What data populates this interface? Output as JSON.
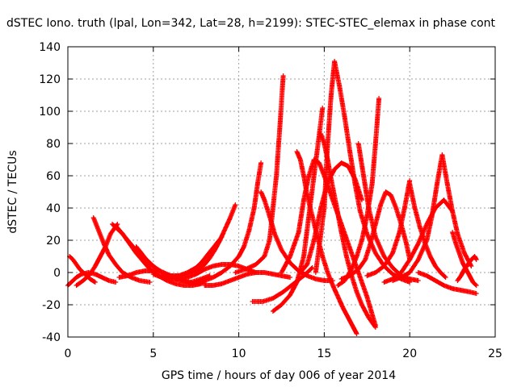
{
  "chart_data": {
    "type": "scatter",
    "title": "dSTEC Iono. truth (lpal, Lon=342, Lat=28, h=2199): STEC-STEC_elemax in phase cont",
    "xlabel": "GPS time / hours of day 006 of year 2014",
    "ylabel": "dSTEC  / TECUs",
    "xlim": [
      0,
      25
    ],
    "ylim": [
      -40,
      140
    ],
    "xticks": [
      0,
      5,
      10,
      15,
      20,
      25
    ],
    "yticks": [
      -40,
      -20,
      0,
      20,
      40,
      60,
      80,
      100,
      120,
      140
    ],
    "grid": true,
    "marker": "+",
    "color": "#ff0000",
    "series": [
      {
        "x": [
          0.0,
          0.2,
          0.5,
          0.8,
          1.2,
          1.6,
          2.0,
          2.4,
          2.8
        ],
        "y": [
          -8,
          -6,
          -3,
          -1,
          0,
          -1,
          -3,
          -5,
          -6
        ]
      },
      {
        "x": [
          0.1,
          0.3,
          0.5,
          0.7,
          1.0,
          1.3,
          1.6
        ],
        "y": [
          10,
          8,
          5,
          2,
          -1,
          -4,
          -6
        ]
      },
      {
        "x": [
          0.5,
          0.9,
          1.3,
          1.6,
          1.9,
          2.2,
          2.5,
          2.9
        ],
        "y": [
          -8,
          -5,
          -1,
          4,
          10,
          16,
          24,
          30
        ]
      },
      {
        "x": [
          1.5,
          1.8,
          2.1,
          2.4,
          2.8,
          3.2,
          3.7,
          4.2,
          4.8
        ],
        "y": [
          34,
          26,
          18,
          11,
          5,
          0,
          -3,
          -5,
          -6
        ]
      },
      {
        "x": [
          2.6,
          2.9,
          3.2,
          3.5,
          3.9,
          4.3,
          4.8,
          5.4,
          6.0
        ],
        "y": [
          30,
          27,
          24,
          20,
          15,
          10,
          5,
          1,
          -2
        ]
      },
      {
        "x": [
          2.8,
          3.2,
          3.6,
          4.0,
          4.4,
          4.8,
          5.3,
          5.8,
          6.3,
          6.8,
          7.3,
          7.8
        ],
        "y": [
          29,
          24,
          18,
          12,
          7,
          2,
          -2,
          -5,
          -7,
          -8,
          -8,
          -7
        ]
      },
      {
        "x": [
          3.0,
          3.5,
          4.0,
          4.5,
          5.0,
          5.5,
          6.0,
          6.5,
          7.0,
          7.5,
          8.0
        ],
        "y": [
          -3,
          -2,
          0,
          1,
          1,
          0,
          -2,
          -4,
          -6,
          -7,
          -6
        ]
      },
      {
        "x": [
          4.0,
          4.3,
          4.6,
          5.0,
          5.5,
          6.0,
          6.6,
          7.2,
          7.8,
          8.3
        ],
        "y": [
          16,
          12,
          8,
          4,
          0,
          -3,
          -5,
          -6,
          -4,
          -2
        ]
      },
      {
        "x": [
          5.0,
          5.5,
          6.0,
          6.5,
          7.0,
          7.5,
          8.0,
          8.5,
          9.0,
          9.5,
          10.0,
          10.5,
          11.0
        ],
        "y": [
          -1,
          -3,
          -4,
          -4,
          -3,
          -1,
          2,
          4,
          5,
          5,
          4,
          2,
          0
        ]
      },
      {
        "x": [
          6.0,
          6.5,
          7.0,
          7.5,
          8.0,
          8.3,
          8.6,
          8.9,
          9.2,
          9.5,
          9.8
        ],
        "y": [
          -2,
          -2,
          -1,
          1,
          5,
          9,
          14,
          20,
          27,
          34,
          42
        ]
      },
      {
        "x": [
          5.6,
          6.0,
          6.5,
          7.0,
          7.5,
          7.8,
          8.1,
          8.4,
          8.7,
          9.0
        ],
        "y": [
          -3,
          -3,
          -2,
          0,
          3,
          6,
          10,
          14,
          18,
          22
        ]
      },
      {
        "x": [
          7.5,
          8.0,
          8.5,
          9.0,
          9.5,
          10.0,
          10.3,
          10.6,
          10.9,
          11.1,
          11.3
        ],
        "y": [
          -6,
          -5,
          -3,
          0,
          4,
          10,
          16,
          26,
          40,
          55,
          68
        ]
      },
      {
        "x": [
          8.0,
          8.5,
          9.0,
          9.5,
          10.0,
          10.5,
          11.0,
          11.5,
          12.0,
          12.5,
          13.0
        ],
        "y": [
          -8,
          -8,
          -7,
          -5,
          -3,
          -1,
          0,
          0,
          -1,
          -2,
          -3
        ]
      },
      {
        "x": [
          9.8,
          10.4,
          11.0,
          11.5,
          11.8,
          12.0,
          12.2,
          12.4,
          12.6
        ],
        "y": [
          0,
          2,
          5,
          10,
          20,
          40,
          60,
          90,
          122
        ]
      },
      {
        "x": [
          11.3,
          11.5,
          11.8,
          12.1,
          12.5,
          13.0,
          13.5,
          14.0,
          14.5,
          15.0,
          15.5
        ],
        "y": [
          50,
          45,
          35,
          24,
          14,
          6,
          1,
          -2,
          -4,
          -5,
          -5
        ]
      },
      {
        "x": [
          10.8,
          11.4,
          12.0,
          12.6,
          13.2,
          13.8,
          14.3
        ],
        "y": [
          -18,
          -18,
          -16,
          -12,
          -7,
          -2,
          3
        ]
      },
      {
        "x": [
          12.5,
          13.0,
          13.5,
          13.8,
          14.1,
          14.4,
          14.7,
          15.0,
          15.5,
          16.0,
          16.5,
          17.0,
          17.5,
          18.0
        ],
        "y": [
          0,
          10,
          25,
          45,
          60,
          70,
          68,
          60,
          45,
          30,
          15,
          0,
          -15,
          -33
        ]
      },
      {
        "x": [
          12.0,
          12.5,
          13.0,
          13.4,
          13.8,
          14.1,
          14.4,
          14.7,
          14.9
        ],
        "y": [
          -24,
          -20,
          -14,
          -6,
          10,
          35,
          60,
          85,
          102
        ]
      },
      {
        "x": [
          13.6,
          14.0,
          14.4,
          14.8,
          15.2,
          15.6,
          16.0,
          16.4,
          16.8,
          17.2
        ],
        "y": [
          0,
          5,
          20,
          40,
          56,
          64,
          68,
          66,
          58,
          45
        ]
      },
      {
        "x": [
          14.8,
          15.0,
          15.2,
          15.4,
          15.7,
          16.0,
          16.3,
          16.6,
          16.9,
          17.2,
          17.6,
          18.0
        ],
        "y": [
          86,
          80,
          70,
          58,
          42,
          25,
          10,
          -2,
          -12,
          -20,
          -28,
          -34
        ]
      },
      {
        "x": [
          13.4,
          13.6,
          13.8,
          14.0,
          14.3,
          14.6,
          14.9,
          15.2,
          15.5,
          15.8,
          16.1,
          16.4,
          16.7,
          16.9
        ],
        "y": [
          75,
          70,
          60,
          48,
          35,
          22,
          10,
          0,
          -8,
          -15,
          -22,
          -28,
          -34,
          -38
        ]
      },
      {
        "x": [
          14.5,
          15.0,
          15.2,
          15.4,
          15.6,
          15.9,
          16.2,
          16.5,
          16.8,
          17.1,
          17.5,
          18.0,
          18.5,
          19.0,
          19.5,
          20.0
        ],
        "y": [
          0,
          40,
          80,
          110,
          131,
          115,
          96,
          75,
          55,
          38,
          24,
          12,
          4,
          -1,
          -4,
          -6
        ]
      },
      {
        "x": [
          15.8,
          16.2,
          16.6,
          16.9,
          17.2,
          17.5,
          17.8,
          18.0,
          18.2
        ],
        "y": [
          -8,
          -5,
          2,
          10,
          20,
          35,
          55,
          80,
          108
        ]
      },
      {
        "x": [
          17.0,
          17.3,
          17.6,
          18.0,
          18.5,
          19.0,
          19.5,
          20.0,
          20.5
        ],
        "y": [
          80,
          60,
          40,
          22,
          10,
          3,
          -2,
          -4,
          -5
        ]
      },
      {
        "x": [
          16.0,
          16.5,
          17.0,
          17.4,
          17.7,
          18.0,
          18.3,
          18.6,
          18.9,
          19.2,
          19.5,
          19.8,
          20.0
        ],
        "y": [
          -4,
          -2,
          2,
          8,
          18,
          30,
          42,
          50,
          48,
          40,
          30,
          18,
          8
        ]
      },
      {
        "x": [
          17.5,
          18.0,
          18.5,
          19.0,
          19.4,
          19.7,
          20.0
        ],
        "y": [
          -2,
          0,
          4,
          12,
          25,
          40,
          57
        ]
      },
      {
        "x": [
          20.0,
          20.3,
          20.6,
          20.9,
          21.2,
          21.5,
          21.8,
          22.1
        ],
        "y": [
          55,
          40,
          28,
          18,
          10,
          4,
          0,
          -3
        ]
      },
      {
        "x": [
          19.0,
          19.5,
          20.0,
          20.5,
          21.0,
          21.3,
          21.6,
          21.9,
          22.2,
          22.5,
          22.8,
          23.2,
          23.6
        ],
        "y": [
          -5,
          -3,
          0,
          8,
          20,
          35,
          55,
          73,
          55,
          38,
          24,
          12,
          4
        ]
      },
      {
        "x": [
          18.5,
          19.0,
          19.5,
          20.0,
          20.5,
          21.0,
          21.5,
          22.0,
          22.5
        ],
        "y": [
          -6,
          -4,
          0,
          8,
          18,
          30,
          40,
          45,
          38
        ]
      },
      {
        "x": [
          22.5,
          22.7,
          22.9,
          23.1,
          23.3,
          23.5,
          23.7,
          23.9
        ],
        "y": [
          25,
          18,
          12,
          6,
          2,
          -2,
          -6,
          -8
        ]
      },
      {
        "x": [
          20.5,
          21.0,
          21.5,
          22.0,
          22.5,
          23.0,
          23.5,
          23.9
        ],
        "y": [
          0,
          -2,
          -5,
          -8,
          -10,
          -11,
          -12,
          -13
        ]
      },
      {
        "x": [
          22.8,
          23.0,
          23.2,
          23.4,
          23.6,
          23.8,
          23.9
        ],
        "y": [
          -5,
          -2,
          2,
          5,
          8,
          10,
          8
        ]
      }
    ]
  }
}
